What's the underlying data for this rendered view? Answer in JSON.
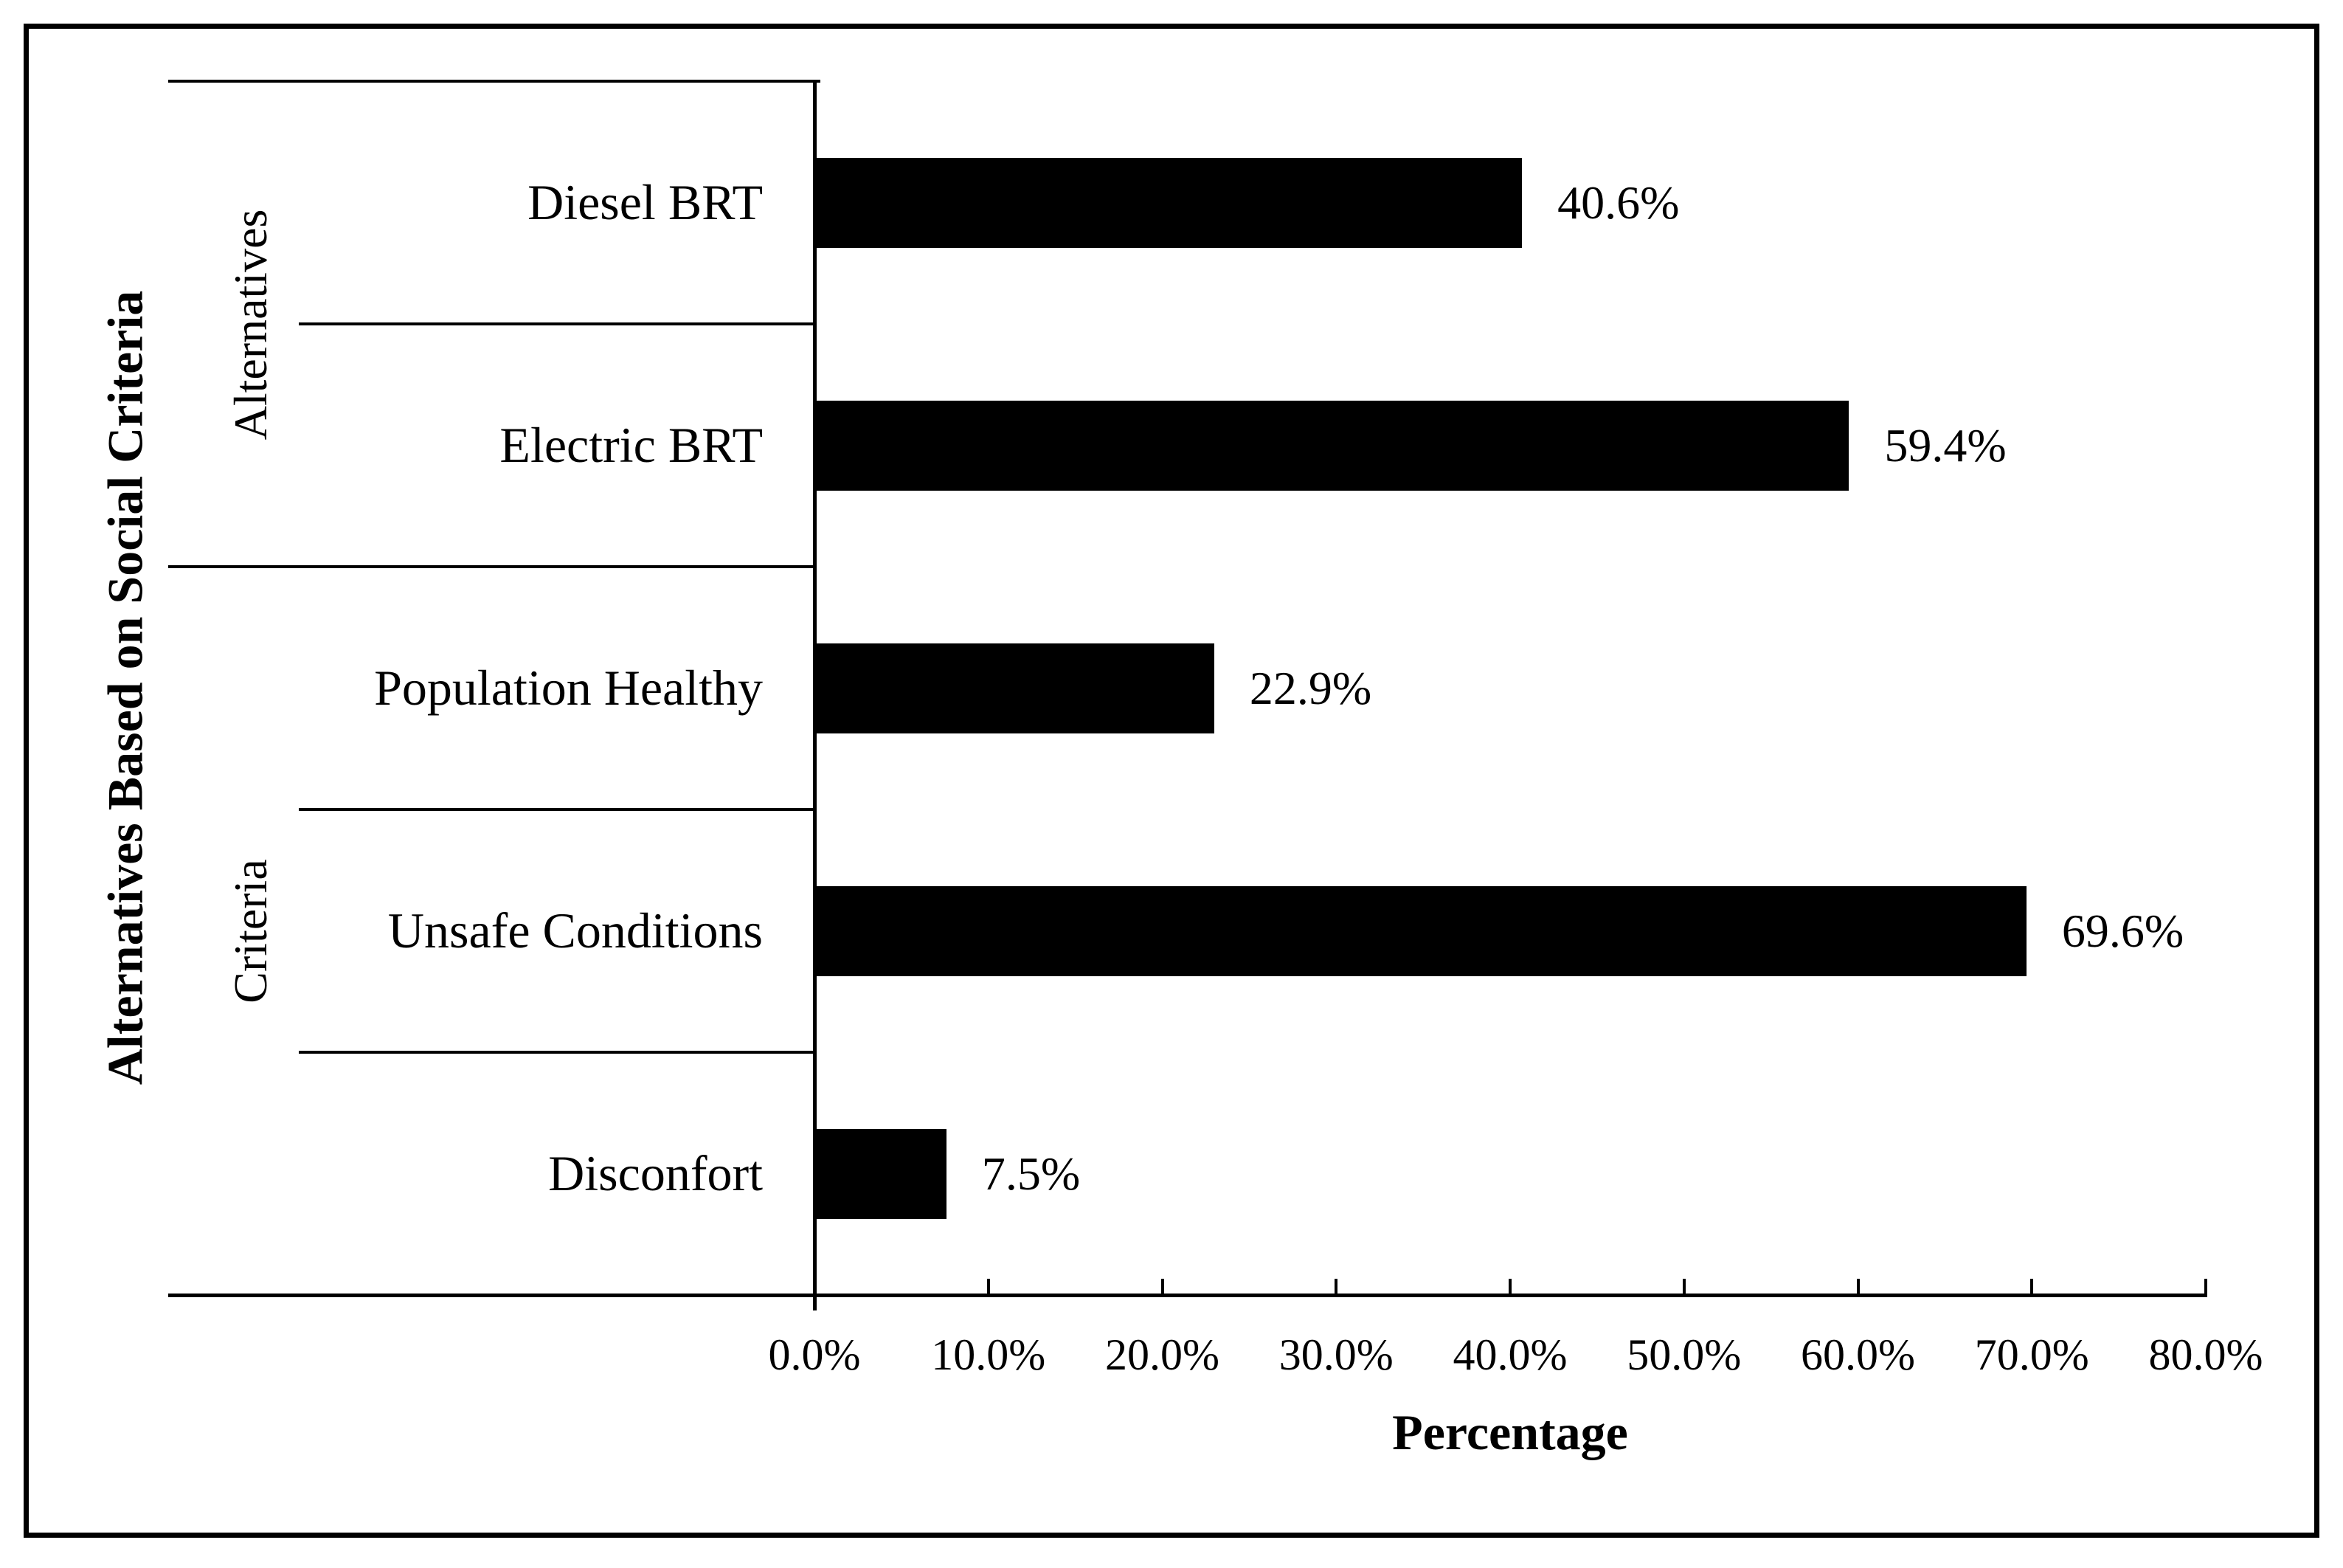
{
  "chart_data": {
    "type": "bar",
    "orientation": "horizontal",
    "title": "",
    "ylabel": "Alternatives Based on Social Criteria",
    "xlabel": "Percentage",
    "groups": [
      {
        "name": "Alternatives",
        "categories": [
          "Diesel BRT",
          "Electric BRT"
        ]
      },
      {
        "name": "Criteria",
        "categories": [
          "Population Healthy",
          "Unsafe Conditions",
          "Disconfort"
        ]
      }
    ],
    "categories": [
      "Diesel BRT",
      "Electric BRT",
      "Population Healthy",
      "Unsafe Conditions",
      "Disconfort"
    ],
    "values": [
      40.6,
      59.4,
      22.9,
      69.6,
      7.5
    ],
    "data_labels": [
      "40.6%",
      "59.4%",
      "22.9%",
      "69.6%",
      "7.5%"
    ],
    "x_ticks": [
      "0.0%",
      "10.0%",
      "20.0%",
      "30.0%",
      "40.0%",
      "50.0%",
      "60.0%",
      "70.0%",
      "80.0%"
    ],
    "x_tick_values": [
      0,
      10,
      20,
      30,
      40,
      50,
      60,
      70,
      80
    ],
    "xlim": [
      0,
      80
    ],
    "bar_color": "#000000",
    "text_color": "#000000",
    "background_color": "#ffffff",
    "grid": "off",
    "legend": "none"
  }
}
